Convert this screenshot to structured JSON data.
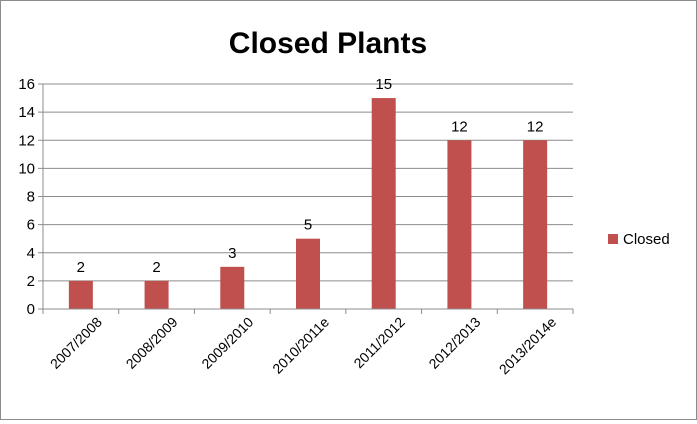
{
  "chart_data": {
    "type": "bar",
    "title": "Closed Plants",
    "categories": [
      "2007/2008",
      "2008/2009",
      "2009/2010",
      "2010/2011e",
      "2011/2012",
      "2012/2013",
      "2013/2014e"
    ],
    "series": [
      {
        "name": "Closed",
        "values": [
          2,
          2,
          3,
          5,
          15,
          12,
          12
        ],
        "color": "#c0504d"
      }
    ],
    "yticks": [
      0,
      2,
      4,
      6,
      8,
      10,
      12,
      14,
      16
    ],
    "ylim": [
      0,
      16
    ],
    "grid": true,
    "data_labels": true,
    "legend_position": "right"
  }
}
